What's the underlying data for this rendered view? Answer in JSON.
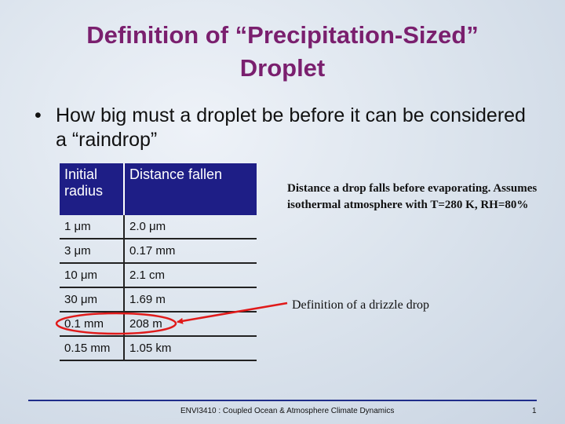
{
  "slide": {
    "title_line1": "Definition of “Precipitation-Sized”",
    "title_line2": "Droplet",
    "bullet_marker": "•",
    "bullet_text": "How big must a droplet be before it can be considered a “raindrop”",
    "table": {
      "headers": [
        "Initial radius",
        "Distance fallen"
      ],
      "rows": [
        [
          "1 μm",
          "2.0 μm"
        ],
        [
          "3 μm",
          "0.17 mm"
        ],
        [
          "10 μm",
          "2.1 cm"
        ],
        [
          "30 μm",
          "1.69 m"
        ],
        [
          "0.1 mm",
          "208 m"
        ],
        [
          "0.15 mm",
          "1.05 km"
        ]
      ]
    },
    "note": "Distance a drop falls before evaporating. Assumes isothermal atmosphere with T=280 K, RH=80%",
    "drizzle_label": "Definition of a drizzle drop",
    "annotation_color": "#e01a1a",
    "title_color": "#7a1f6e",
    "header_color": "#1e1e86",
    "footer": "ENVI3410 : Coupled Ocean & Atmosphere Climate Dynamics",
    "page_number": "1"
  }
}
